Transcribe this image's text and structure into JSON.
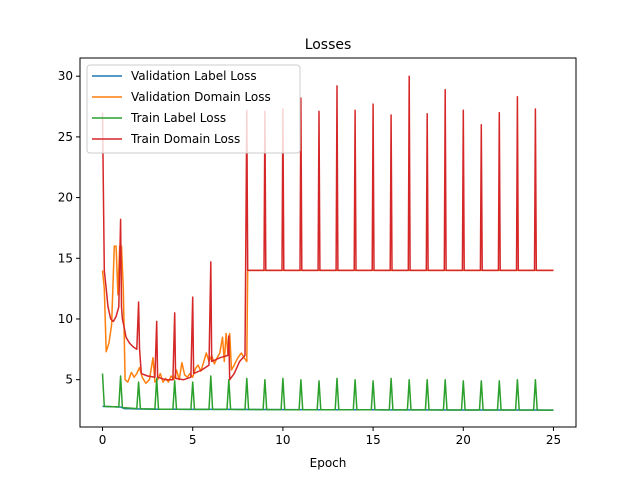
{
  "chart_data": {
    "type": "line",
    "title": "Losses",
    "xlabel": "Epoch",
    "ylabel": "",
    "xlim": [
      -1.25,
      26.25
    ],
    "ylim": [
      1.1,
      31.5
    ],
    "xticks": [
      0,
      5,
      10,
      15,
      20,
      25
    ],
    "yticks": [
      5,
      10,
      15,
      20,
      25,
      30
    ],
    "grid": false,
    "legend_position": "top-left",
    "series": [
      {
        "name": "Validation Label Loss",
        "color": "#1f77b4",
        "points": [
          [
            0,
            2.8
          ],
          [
            1,
            2.75
          ],
          [
            1.2,
            2.62
          ],
          [
            2,
            2.58
          ],
          [
            3,
            2.56
          ],
          [
            4,
            2.56
          ],
          [
            5,
            2.55
          ],
          [
            6,
            2.55
          ],
          [
            7,
            2.55
          ],
          [
            8,
            2.54
          ],
          [
            10,
            2.53
          ],
          [
            12,
            2.52
          ],
          [
            15,
            2.52
          ],
          [
            18,
            2.51
          ],
          [
            20,
            2.5
          ],
          [
            22,
            2.5
          ],
          [
            24,
            2.5
          ],
          [
            25,
            2.49
          ]
        ]
      },
      {
        "name": "Validation Domain Loss",
        "color": "#ff7f0e",
        "points": [
          [
            0,
            14.0
          ],
          [
            0.1,
            12.5
          ],
          [
            0.2,
            7.3
          ],
          [
            0.35,
            8.0
          ],
          [
            0.5,
            9.5
          ],
          [
            0.65,
            16.0
          ],
          [
            0.75,
            16.0
          ],
          [
            0.85,
            12.0
          ],
          [
            0.95,
            16.0
          ],
          [
            1.05,
            16.0
          ],
          [
            1.15,
            12.5
          ],
          [
            1.25,
            5.0
          ],
          [
            1.4,
            4.8
          ],
          [
            1.6,
            5.6
          ],
          [
            1.75,
            5.2
          ],
          [
            1.9,
            5.5
          ],
          [
            2.05,
            6.0
          ],
          [
            2.2,
            5.2
          ],
          [
            2.4,
            4.7
          ],
          [
            2.6,
            5.0
          ],
          [
            2.8,
            6.8
          ],
          [
            2.9,
            4.8
          ],
          [
            3.05,
            5.0
          ],
          [
            3.2,
            5.5
          ],
          [
            3.35,
            4.8
          ],
          [
            3.5,
            5.1
          ],
          [
            3.65,
            4.8
          ],
          [
            3.8,
            5.3
          ],
          [
            3.95,
            5.0
          ],
          [
            4.1,
            5.8
          ],
          [
            4.25,
            5.0
          ],
          [
            4.4,
            6.4
          ],
          [
            4.55,
            5.4
          ],
          [
            4.7,
            5.2
          ],
          [
            4.85,
            5.5
          ],
          [
            5.0,
            5.2
          ],
          [
            5.15,
            5.9
          ],
          [
            5.3,
            6.2
          ],
          [
            5.45,
            5.7
          ],
          [
            5.6,
            6.4
          ],
          [
            5.75,
            7.2
          ],
          [
            5.9,
            6.5
          ],
          [
            6.05,
            7.0
          ],
          [
            6.2,
            6.3
          ],
          [
            6.35,
            6.8
          ],
          [
            6.5,
            7.2
          ],
          [
            6.65,
            8.5
          ],
          [
            6.75,
            6.5
          ],
          [
            6.85,
            8.8
          ],
          [
            6.95,
            7.2
          ],
          [
            7.05,
            8.8
          ],
          [
            7.15,
            5.8
          ],
          [
            7.3,
            6.2
          ],
          [
            7.5,
            6.8
          ],
          [
            7.7,
            7.2
          ],
          [
            7.85,
            6.8
          ],
          [
            8.0,
            6.5
          ],
          [
            8.05,
            14.0
          ],
          [
            10,
            14.0
          ],
          [
            15,
            14.0
          ],
          [
            20,
            14.0
          ],
          [
            25,
            14.0
          ]
        ]
      },
      {
        "name": "Train Label Loss",
        "color": "#2ca02c",
        "points": [
          [
            0,
            5.5
          ],
          [
            0.1,
            2.8
          ],
          [
            0.9,
            2.75
          ],
          [
            1.0,
            5.3
          ],
          [
            1.1,
            2.7
          ],
          [
            1.9,
            2.62
          ],
          [
            2.0,
            4.8
          ],
          [
            2.1,
            2.6
          ],
          [
            2.9,
            2.58
          ],
          [
            3.0,
            5.1
          ],
          [
            3.1,
            2.57
          ],
          [
            3.9,
            2.56
          ],
          [
            4.0,
            4.9
          ],
          [
            4.1,
            2.56
          ],
          [
            4.9,
            2.55
          ],
          [
            5.0,
            4.8
          ],
          [
            5.1,
            2.55
          ],
          [
            5.9,
            2.55
          ],
          [
            6.0,
            5.3
          ],
          [
            6.1,
            2.55
          ],
          [
            6.9,
            2.55
          ],
          [
            7.0,
            5.0
          ],
          [
            7.1,
            2.55
          ],
          [
            7.9,
            2.54
          ],
          [
            8.0,
            5.1
          ],
          [
            8.1,
            2.54
          ],
          [
            8.9,
            2.53
          ],
          [
            9.0,
            5.0
          ],
          [
            9.1,
            2.53
          ],
          [
            9.9,
            2.53
          ],
          [
            10.0,
            5.1
          ],
          [
            10.1,
            2.53
          ],
          [
            10.9,
            2.52
          ],
          [
            11.0,
            5.0
          ],
          [
            11.1,
            2.52
          ],
          [
            11.9,
            2.52
          ],
          [
            12.0,
            4.9
          ],
          [
            12.1,
            2.52
          ],
          [
            12.9,
            2.52
          ],
          [
            13.0,
            5.1
          ],
          [
            13.1,
            2.52
          ],
          [
            13.9,
            2.52
          ],
          [
            14.0,
            5.0
          ],
          [
            14.1,
            2.52
          ],
          [
            14.9,
            2.52
          ],
          [
            15.0,
            4.9
          ],
          [
            15.1,
            2.52
          ],
          [
            15.9,
            2.51
          ],
          [
            16.0,
            5.1
          ],
          [
            16.1,
            2.51
          ],
          [
            16.9,
            2.51
          ],
          [
            17.0,
            5.0
          ],
          [
            17.1,
            2.51
          ],
          [
            17.9,
            2.51
          ],
          [
            18.0,
            5.0
          ],
          [
            18.1,
            2.51
          ],
          [
            18.9,
            2.5
          ],
          [
            19.0,
            5.0
          ],
          [
            19.1,
            2.5
          ],
          [
            19.9,
            2.5
          ],
          [
            20.0,
            4.9
          ],
          [
            20.1,
            2.5
          ],
          [
            20.9,
            2.5
          ],
          [
            21.0,
            4.9
          ],
          [
            21.1,
            2.5
          ],
          [
            21.9,
            2.5
          ],
          [
            22.0,
            4.9
          ],
          [
            22.1,
            2.5
          ],
          [
            22.9,
            2.5
          ],
          [
            23.0,
            5.0
          ],
          [
            23.1,
            2.5
          ],
          [
            23.9,
            2.49
          ],
          [
            24.0,
            5.0
          ],
          [
            24.1,
            2.49
          ],
          [
            25.0,
            2.49
          ]
        ]
      },
      {
        "name": "Train Domain Loss",
        "color": "#d62728",
        "points": [
          [
            0,
            27.0
          ],
          [
            0.1,
            14.0
          ],
          [
            0.2,
            12.5
          ],
          [
            0.3,
            11.0
          ],
          [
            0.45,
            10.0
          ],
          [
            0.6,
            9.8
          ],
          [
            0.75,
            10.2
          ],
          [
            0.9,
            11.0
          ],
          [
            1.0,
            18.2
          ],
          [
            1.05,
            11.0
          ],
          [
            1.1,
            10.0
          ],
          [
            1.2,
            9.3
          ],
          [
            1.3,
            8.5
          ],
          [
            1.5,
            8.0
          ],
          [
            1.7,
            7.7
          ],
          [
            1.9,
            7.5
          ],
          [
            2.0,
            11.4
          ],
          [
            2.05,
            7.6
          ],
          [
            2.15,
            5.5
          ],
          [
            2.5,
            5.3
          ],
          [
            2.9,
            5.2
          ],
          [
            3.0,
            9.8
          ],
          [
            3.05,
            5.2
          ],
          [
            3.5,
            5.0
          ],
          [
            3.9,
            5.0
          ],
          [
            4.0,
            10.5
          ],
          [
            4.05,
            5.1
          ],
          [
            4.5,
            5.0
          ],
          [
            4.9,
            5.2
          ],
          [
            5.0,
            11.8
          ],
          [
            5.05,
            5.5
          ],
          [
            5.5,
            5.8
          ],
          [
            5.9,
            6.2
          ],
          [
            6.0,
            14.7
          ],
          [
            6.05,
            6.5
          ],
          [
            6.5,
            6.8
          ],
          [
            6.95,
            7.0
          ],
          [
            7.0,
            8.6
          ],
          [
            7.05,
            5.0
          ],
          [
            7.3,
            5.5
          ],
          [
            7.6,
            6.5
          ],
          [
            7.9,
            7.0
          ],
          [
            8.0,
            27.2
          ],
          [
            8.05,
            14.0
          ],
          [
            8.95,
            14.0
          ],
          [
            9.0,
            27.1
          ],
          [
            9.05,
            14.0
          ],
          [
            9.95,
            14.0
          ],
          [
            10.0,
            27.3
          ],
          [
            10.05,
            14.0
          ],
          [
            10.95,
            14.0
          ],
          [
            11.0,
            28.2
          ],
          [
            11.05,
            14.0
          ],
          [
            11.95,
            14.0
          ],
          [
            12.0,
            27.1
          ],
          [
            12.05,
            14.0
          ],
          [
            12.95,
            14.0
          ],
          [
            13.0,
            29.2
          ],
          [
            13.05,
            14.0
          ],
          [
            13.95,
            14.0
          ],
          [
            14.0,
            27.2
          ],
          [
            14.05,
            14.0
          ],
          [
            14.95,
            14.0
          ],
          [
            15.0,
            27.7
          ],
          [
            15.05,
            14.0
          ],
          [
            15.95,
            14.0
          ],
          [
            16.0,
            26.8
          ],
          [
            16.05,
            14.0
          ],
          [
            16.95,
            14.0
          ],
          [
            17.0,
            30.0
          ],
          [
            17.05,
            14.0
          ],
          [
            17.95,
            14.0
          ],
          [
            18.0,
            26.9
          ],
          [
            18.05,
            14.0
          ],
          [
            18.95,
            14.0
          ],
          [
            19.0,
            28.9
          ],
          [
            19.05,
            14.0
          ],
          [
            19.95,
            14.0
          ],
          [
            20.0,
            27.2
          ],
          [
            20.05,
            14.0
          ],
          [
            20.95,
            14.0
          ],
          [
            21.0,
            26.0
          ],
          [
            21.05,
            14.0
          ],
          [
            21.95,
            14.0
          ],
          [
            22.0,
            27.0
          ],
          [
            22.05,
            14.0
          ],
          [
            22.95,
            14.0
          ],
          [
            23.0,
            28.3
          ],
          [
            23.05,
            14.0
          ],
          [
            23.95,
            14.0
          ],
          [
            24.0,
            27.3
          ],
          [
            24.05,
            14.0
          ],
          [
            25.0,
            14.0
          ]
        ]
      }
    ]
  }
}
